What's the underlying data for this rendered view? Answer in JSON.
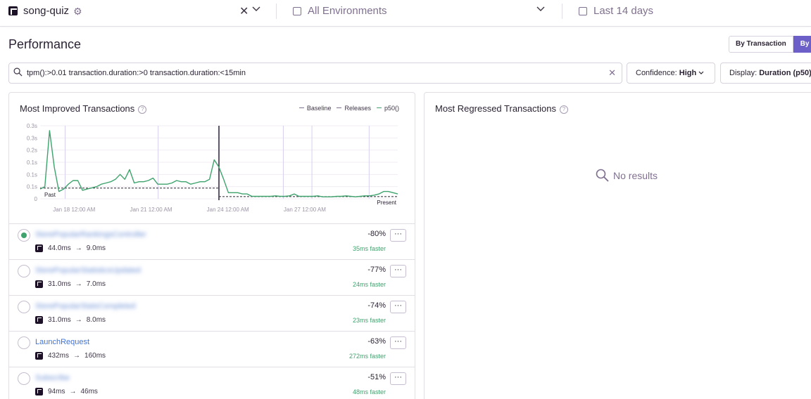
{
  "topbar": {
    "project": "song-quiz",
    "environments": "All Environments",
    "date_range": "Last 14 days"
  },
  "header": {
    "title": "Performance",
    "toggle": [
      "By Transaction",
      "By Tr"
    ]
  },
  "filter": {
    "query": "tpm():>0.01 transaction.duration:>0 transaction.duration:<15min",
    "confidence_label": "Confidence:",
    "confidence_value": "High",
    "display_label": "Display:",
    "display_value": "Duration (p50)"
  },
  "improved": {
    "title": "Most Improved Transactions",
    "help": "?",
    "legend": [
      "Baseline",
      "Releases",
      "p50()"
    ],
    "rows": [
      {
        "name": "StorePopularRankingsController",
        "from": "44.0ms",
        "to": "9.0ms",
        "pct": "-80%",
        "faster": "35ms faster",
        "selected": true,
        "blurred": true
      },
      {
        "name": "StorePopularStatisticsUpdated",
        "from": "31.0ms",
        "to": "7.0ms",
        "pct": "-77%",
        "faster": "24ms faster",
        "selected": false,
        "blurred": true
      },
      {
        "name": "StorePopularStatsCompleted",
        "from": "31.0ms",
        "to": "8.0ms",
        "pct": "-74%",
        "faster": "23ms faster",
        "selected": false,
        "blurred": true
      },
      {
        "name": "LaunchRequest",
        "from": "432ms",
        "to": "160ms",
        "pct": "-63%",
        "faster": "272ms faster",
        "selected": false,
        "blurred": false
      },
      {
        "name": "Subscribe",
        "from": "94ms",
        "to": "46ms",
        "pct": "-51%",
        "faster": "48ms faster",
        "selected": false,
        "blurred": true
      }
    ]
  },
  "regressed": {
    "title": "Most Regressed Transactions",
    "help": "?",
    "empty": "No results"
  },
  "chart_data": {
    "type": "line",
    "y_ticks": [
      "0.3s",
      "0.3s",
      "0.2s",
      "0.1s",
      "0.1s",
      "0.1s",
      "0"
    ],
    "x_ticks": [
      "Jan 18 12:00 AM",
      "Jan 21 12:00 AM",
      "Jan 24 12:00 AM",
      "Jan 27 12:00 AM"
    ],
    "past_label": "Past",
    "present_label": "Present",
    "ylim": [
      0,
      0.3
    ],
    "baseline_past": 0.044,
    "baseline_present": 0.009,
    "series": [
      {
        "name": "p50()",
        "color": "#3ea36d",
        "values": [
          0.04,
          0.05,
          0.28,
          0.13,
          0.03,
          0.04,
          0.06,
          0.075,
          0.075,
          0.035,
          0.04,
          0.045,
          0.05,
          0.06,
          0.065,
          0.07,
          0.08,
          0.1,
          0.08,
          0.12,
          0.065,
          0.07,
          0.07,
          0.075,
          0.085,
          0.06,
          0.06,
          0.06,
          0.065,
          0.075,
          0.07,
          0.07,
          0.06,
          0.065,
          0.07,
          0.07,
          0.08,
          0.16,
          0.13,
          0.08,
          0.025,
          0.025,
          0.025,
          0.02,
          0.02,
          0.01,
          0.01,
          0.01,
          0.01,
          0.01,
          0.012,
          0.01,
          0.01,
          0.012,
          0.02,
          0.01,
          0.01,
          0.01,
          0.01,
          0.012,
          0.008,
          0.008,
          0.008,
          0.01,
          0.01,
          0.012,
          0.01,
          0.008,
          0.01,
          0.012,
          0.012,
          0.015,
          0.02,
          0.03,
          0.03,
          0.025,
          0.02
        ]
      }
    ],
    "releases": [
      0.07,
      0.33,
      0.68,
      0.76,
      0.92
    ],
    "cut": 0.5
  }
}
